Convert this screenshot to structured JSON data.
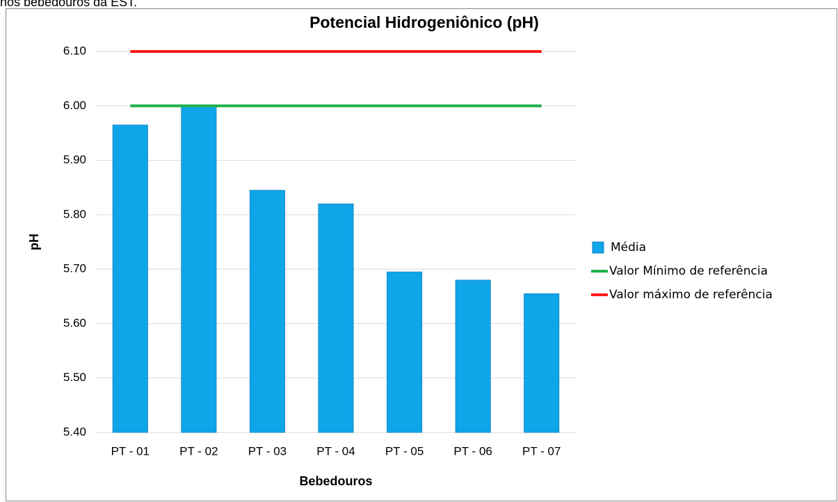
{
  "caption": "nos bebedouros da EST.",
  "chart_data": {
    "type": "bar",
    "title": "Potencial Hidrogeniônico (pH)",
    "x_label": "Bebedouros",
    "y_label": "pH",
    "categories": [
      "PT - 01",
      "PT - 02",
      "PT - 03",
      "PT - 04",
      "PT - 05",
      "PT - 06",
      "PT - 07"
    ],
    "series": [
      {
        "name": "Média",
        "type": "bar",
        "color": "#0ea5e9",
        "values": [
          5.965,
          6.0,
          5.845,
          5.82,
          5.695,
          5.68,
          5.655
        ]
      },
      {
        "name": "Valor Mínimo de referência",
        "type": "line",
        "color": "#21b04b",
        "values": [
          6.0,
          6.0,
          6.0,
          6.0,
          6.0,
          6.0,
          6.0
        ]
      },
      {
        "name": "Valor máximo de referência",
        "type": "line",
        "color": "#ff1a1a",
        "values": [
          6.1,
          6.1,
          6.1,
          6.1,
          6.1,
          6.1,
          6.1
        ]
      }
    ],
    "ylim": [
      5.4,
      6.1
    ],
    "yticks": [
      {
        "value": 5.4,
        "label": "5.40"
      },
      {
        "value": 5.5,
        "label": "5.50"
      },
      {
        "value": 5.6,
        "label": "5.60"
      },
      {
        "value": 5.7,
        "label": "5.70"
      },
      {
        "value": 5.8,
        "label": "5.80"
      },
      {
        "value": 5.9,
        "label": "5.90"
      },
      {
        "value": 6.0,
        "label": "6.00"
      },
      {
        "value": 6.1,
        "label": "6.10"
      }
    ],
    "grid": true,
    "legend": "right"
  }
}
